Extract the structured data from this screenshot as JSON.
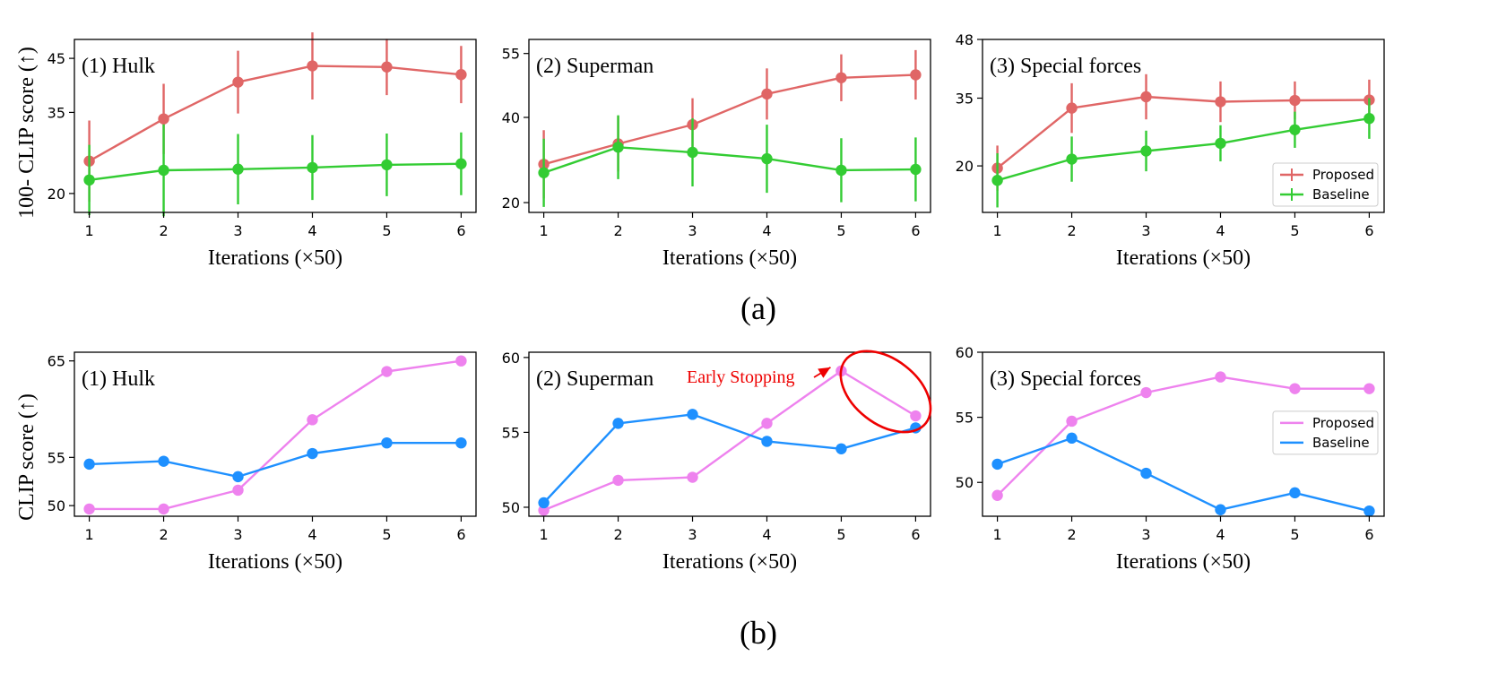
{
  "figure": {
    "caption_a": "(a)",
    "caption_b": "(b)",
    "ylabel_a": "100- CLIP score (↑)",
    "ylabel_b": "CLIP score (↑)"
  },
  "colors": {
    "proposed_a": "#e06666",
    "baseline_a": "#33cc33",
    "proposed_b": "#ee82ee",
    "baseline_b": "#1e90ff",
    "annotation": "#ee0000"
  },
  "chart_data": [
    {
      "type": "line",
      "row": "a",
      "col": 0,
      "title": "(1) Hulk",
      "xlabel": "Iterations (×50)",
      "ylabel": "100- CLIP score (↑)",
      "x": [
        1,
        2,
        3,
        4,
        5,
        6
      ],
      "xlim": [
        0.8,
        6.2
      ],
      "ylim": [
        16.5,
        48.5
      ],
      "yticks": [
        20,
        35,
        45
      ],
      "legend": false,
      "series": [
        {
          "name": "Proposed",
          "values": [
            26.0,
            33.8,
            40.6,
            43.6,
            43.4,
            42.0
          ],
          "err": [
            7.5,
            6.5,
            5.8,
            6.2,
            5.2,
            5.3
          ],
          "color": "#e06666"
        },
        {
          "name": "Baseline",
          "values": [
            22.5,
            24.3,
            24.5,
            24.8,
            25.3,
            25.5
          ],
          "err": [
            6.5,
            8.5,
            6.5,
            6.0,
            5.8,
            5.8
          ],
          "color": "#33cc33"
        }
      ]
    },
    {
      "type": "line",
      "row": "a",
      "col": 1,
      "title": "(2) Superman",
      "xlabel": "Iterations (×50)",
      "ylabel": "",
      "x": [
        1,
        2,
        3,
        4,
        5,
        6
      ],
      "xlim": [
        0.8,
        6.2
      ],
      "ylim": [
        17.7,
        58.3
      ],
      "yticks": [
        20,
        40,
        55
      ],
      "legend": false,
      "series": [
        {
          "name": "Proposed",
          "values": [
            29.0,
            33.8,
            38.3,
            45.5,
            49.3,
            50.0
          ],
          "err": [
            8.0,
            6.5,
            6.2,
            6.0,
            5.5,
            5.8
          ],
          "color": "#e06666"
        },
        {
          "name": "Baseline",
          "values": [
            27.0,
            33.0,
            31.8,
            30.3,
            27.6,
            27.8
          ],
          "err": [
            8.0,
            7.5,
            8.0,
            8.0,
            7.5,
            7.5
          ],
          "color": "#33cc33"
        }
      ]
    },
    {
      "type": "line",
      "row": "a",
      "col": 2,
      "title": "(3) Special forces",
      "xlabel": "Iterations (×50)",
      "ylabel": "",
      "x": [
        1,
        2,
        3,
        4,
        5,
        6
      ],
      "xlim": [
        0.8,
        6.2
      ],
      "ylim": [
        9.7,
        48.0
      ],
      "yticks": [
        20,
        35,
        48
      ],
      "legend": true,
      "legend_loc": "lower right",
      "series": [
        {
          "name": "Proposed",
          "values": [
            19.5,
            32.8,
            35.3,
            34.2,
            34.5,
            34.6
          ],
          "err": [
            5.0,
            5.5,
            5.0,
            4.5,
            4.2,
            4.5
          ],
          "color": "#e06666"
        },
        {
          "name": "Baseline",
          "values": [
            16.8,
            21.5,
            23.3,
            25.0,
            28.0,
            30.5
          ],
          "err": [
            6.0,
            5.0,
            4.5,
            4.0,
            4.0,
            4.5
          ],
          "color": "#33cc33"
        }
      ]
    },
    {
      "type": "line",
      "row": "b",
      "col": 0,
      "title": "(1) Hulk",
      "xlabel": "Iterations (×50)",
      "ylabel": "CLIP score (↑)",
      "x": [
        1,
        2,
        3,
        4,
        5,
        6
      ],
      "xlim": [
        0.8,
        6.2
      ],
      "ylim": [
        48.9,
        65.9
      ],
      "yticks": [
        50,
        55,
        65
      ],
      "legend": false,
      "series": [
        {
          "name": "Proposed",
          "values": [
            49.65,
            49.65,
            51.6,
            58.9,
            63.9,
            65.0
          ],
          "color": "#ee82ee"
        },
        {
          "name": "Baseline",
          "values": [
            54.3,
            54.6,
            53.0,
            55.4,
            56.5,
            56.5
          ],
          "color": "#1e90ff"
        }
      ]
    },
    {
      "type": "line",
      "row": "b",
      "col": 1,
      "title": "(2) Superman",
      "xlabel": "Iterations (×50)",
      "ylabel": "",
      "x": [
        1,
        2,
        3,
        4,
        5,
        6
      ],
      "xlim": [
        0.8,
        6.2
      ],
      "ylim": [
        49.4,
        60.35
      ],
      "yticks": [
        50,
        55,
        60
      ],
      "legend": false,
      "annotation": {
        "text": "Early Stopping",
        "target_x": 5,
        "target_y": 59.1
      },
      "series": [
        {
          "name": "Proposed",
          "values": [
            49.8,
            51.8,
            52.0,
            55.6,
            59.1,
            56.1
          ],
          "color": "#ee82ee"
        },
        {
          "name": "Baseline",
          "values": [
            50.3,
            55.6,
            56.2,
            54.4,
            53.9,
            55.3
          ],
          "color": "#1e90ff"
        }
      ]
    },
    {
      "type": "line",
      "row": "b",
      "col": 2,
      "title": "(3) Special forces",
      "xlabel": "Iterations (×50)",
      "ylabel": "",
      "x": [
        1,
        2,
        3,
        4,
        5,
        6
      ],
      "xlim": [
        0.8,
        6.2
      ],
      "ylim": [
        47.4,
        60.0
      ],
      "yticks": [
        50,
        55,
        60
      ],
      "legend": true,
      "legend_loc": "center right",
      "series": [
        {
          "name": "Proposed",
          "values": [
            49.0,
            54.7,
            56.9,
            58.1,
            57.2,
            57.2
          ],
          "color": "#ee82ee"
        },
        {
          "name": "Baseline",
          "values": [
            51.4,
            53.4,
            50.7,
            47.9,
            49.2,
            47.8
          ],
          "color": "#1e90ff"
        }
      ]
    }
  ]
}
